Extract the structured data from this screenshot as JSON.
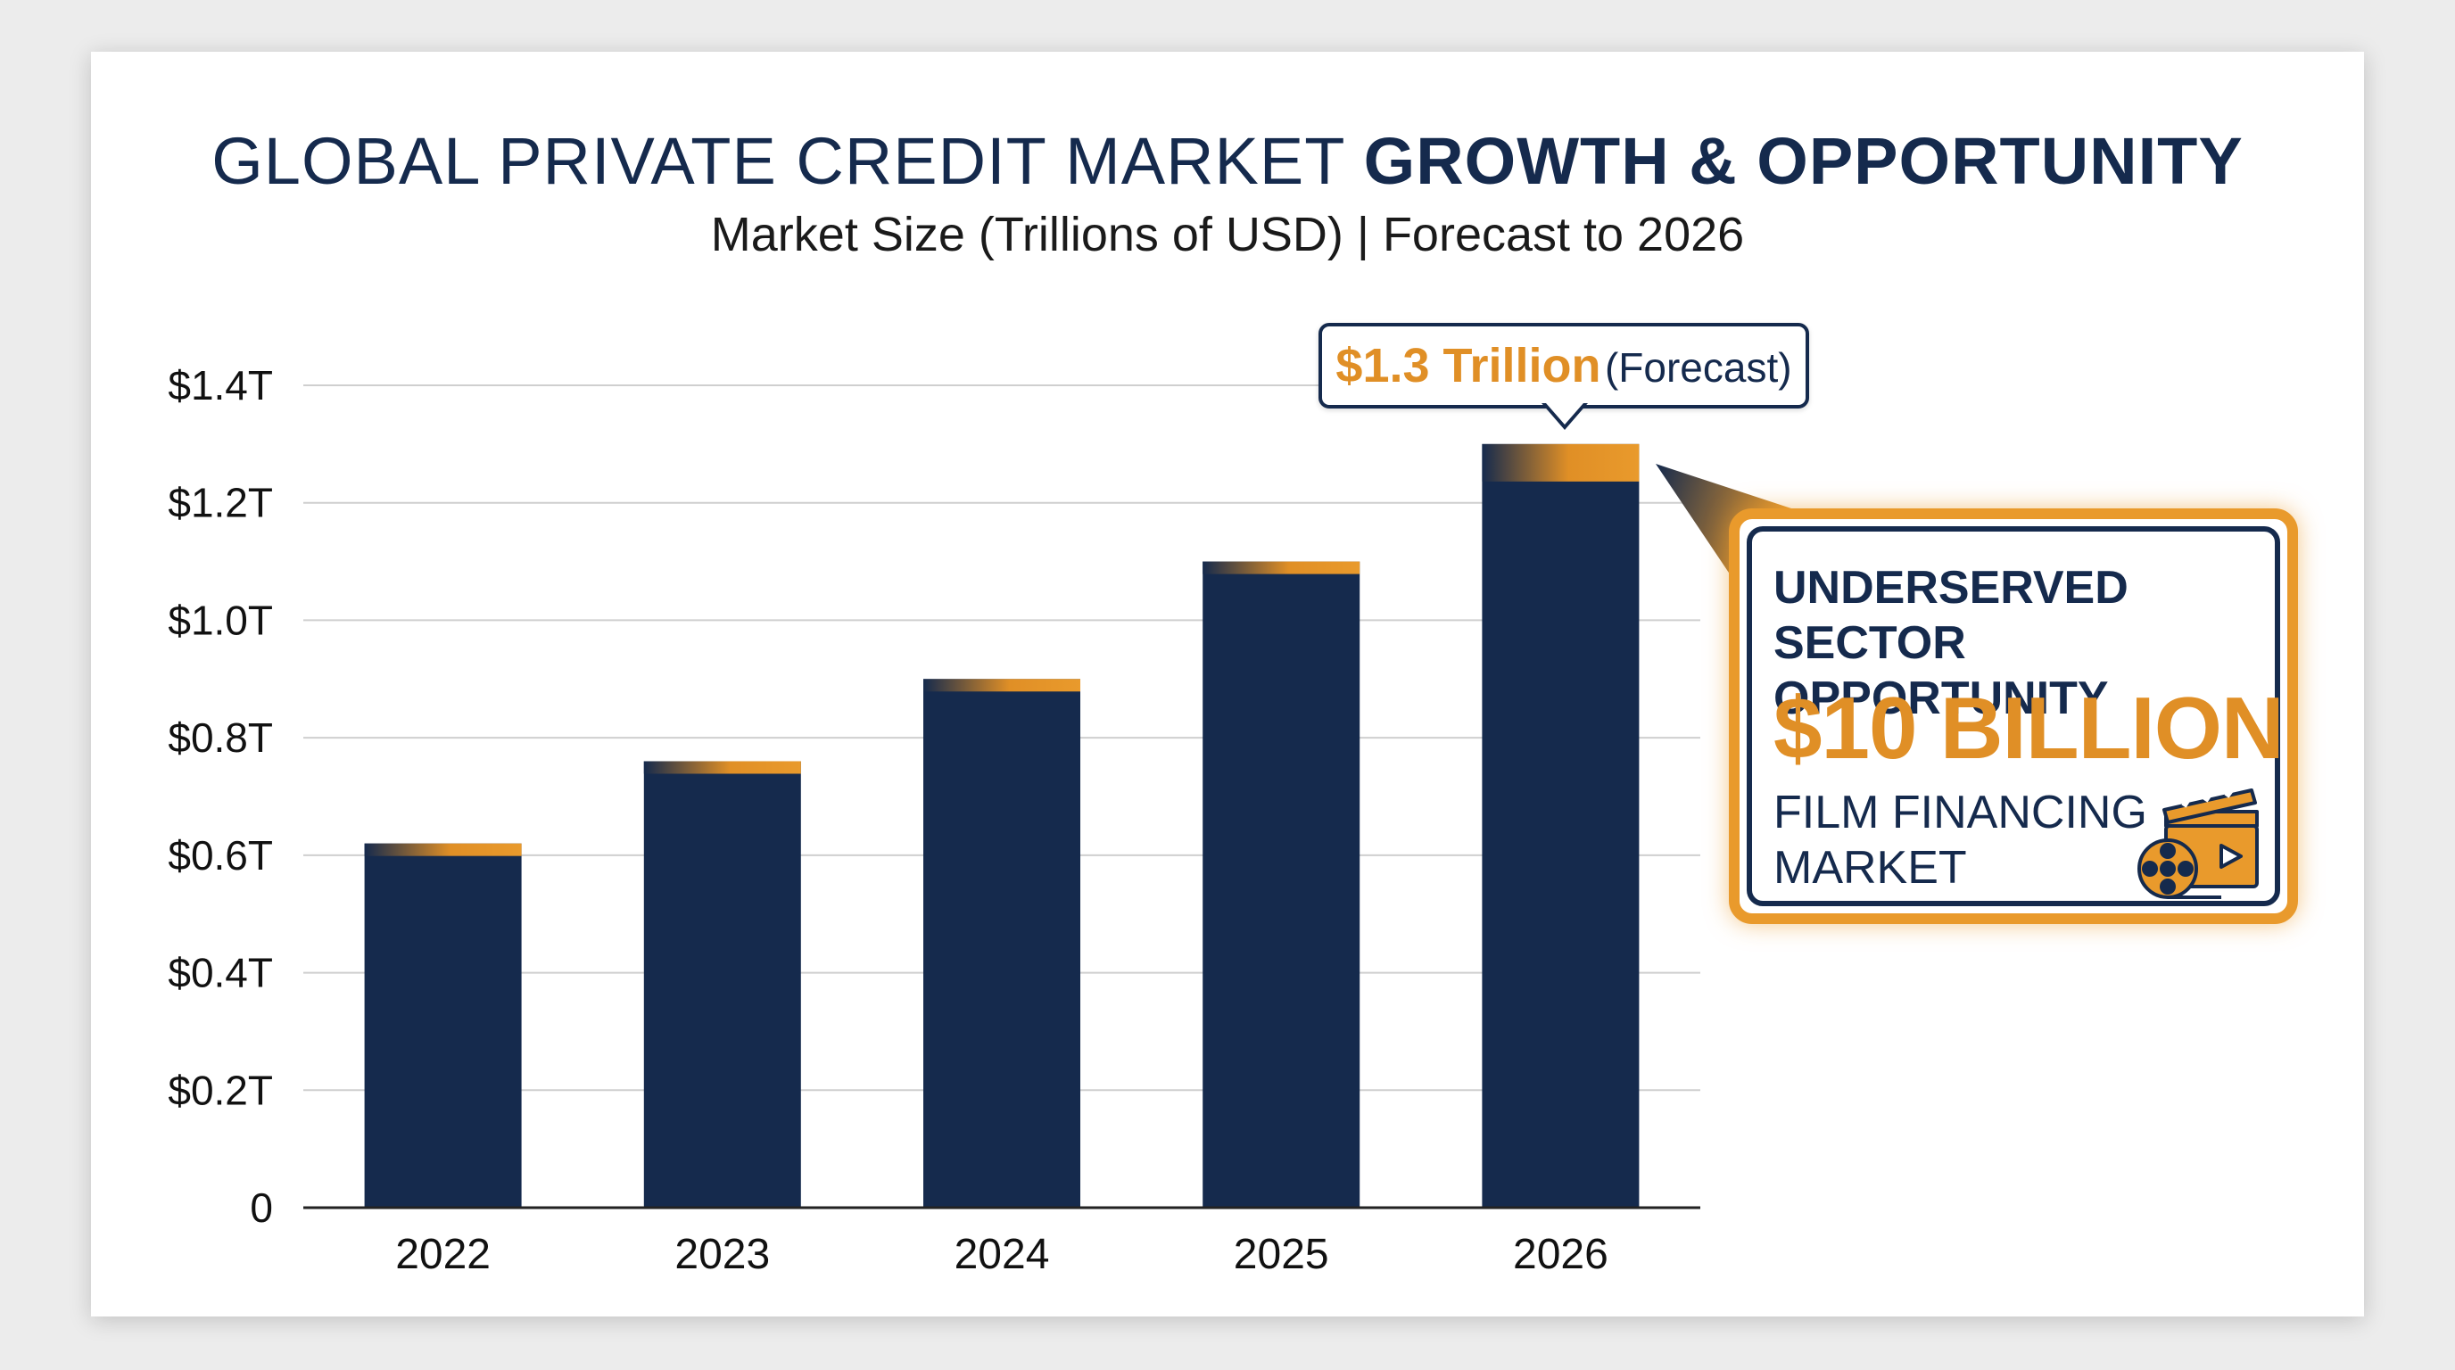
{
  "header": {
    "title_regular": "GLOBAL PRIVATE CREDIT MARKET ",
    "title_bold": "GROWTH & OPPORTUNITY",
    "subtitle": "Market Size (Trillions of USD) | Forecast to 2026"
  },
  "chart_data": {
    "type": "bar",
    "categories": [
      "2022",
      "2023",
      "2024",
      "2025",
      "2026"
    ],
    "values": [
      0.62,
      0.76,
      0.9,
      1.1,
      1.3
    ],
    "ylim": [
      0,
      1.4
    ],
    "y_ticks": [
      {
        "value": 0,
        "label": "0"
      },
      {
        "value": 0.2,
        "label": "$0.2T"
      },
      {
        "value": 0.4,
        "label": "$0.4T"
      },
      {
        "value": 0.6,
        "label": "$0.6T"
      },
      {
        "value": 0.8,
        "label": "$0.8T"
      },
      {
        "value": 1.0,
        "label": "$1.0T"
      },
      {
        "value": 1.2,
        "label": "$1.2T"
      },
      {
        "value": 1.4,
        "label": "$1.4T"
      }
    ],
    "grid": true,
    "bar_color": "#152a4d",
    "accent_color": "#e08f26",
    "annotation": {
      "category": "2026",
      "value_text": "$1.3 Trillion",
      "note_text": "(Forecast)"
    }
  },
  "callout": {
    "heading": "UNDERSERVED SECTOR OPPORTUNITY",
    "amount": "$10 BILLION",
    "sub": "FILM FINANCING MARKET",
    "icon": "film-clapper-reel-icon"
  },
  "colors": {
    "navy": "#152a4d",
    "orange": "#e08f26"
  }
}
